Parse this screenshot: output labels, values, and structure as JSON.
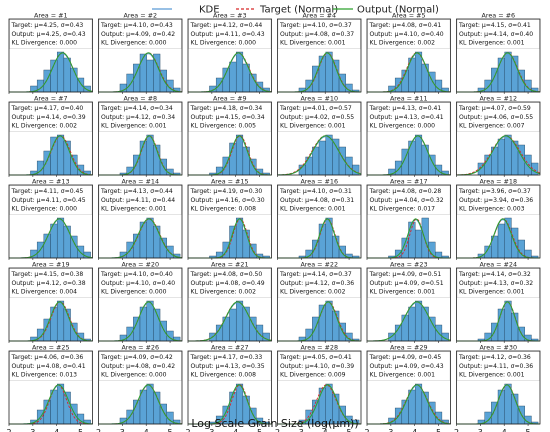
{
  "chart_data": {
    "type": "histogram-grid",
    "xlabel": "Log Scale Grain Size (log(μm))",
    "xlim": [
      2,
      5.5
    ],
    "xticks": [
      2,
      3,
      4,
      5
    ],
    "grid": {
      "rows": 5,
      "cols": 6
    },
    "legend": {
      "placement": "top-center",
      "entries": [
        {
          "label": "KDE",
          "color": "#5b9bd5",
          "style": "solid"
        },
        {
          "label": "Target (Normal)",
          "color": "#d62728",
          "style": "dashed"
        },
        {
          "label": "Output (Normal)",
          "color": "#2ca02c",
          "style": "solid"
        }
      ]
    },
    "colors": {
      "bar": "#5aa3d6",
      "bar_edge": "#1f3f5a",
      "kde": "#5b9bd5",
      "target": "#d62728",
      "output": "#2ca02c"
    },
    "panels": [
      {
        "title": "Area = #1",
        "target": "Target: μ=4.25, σ=0.43",
        "output": "Output: μ=4.25, σ=0.43",
        "kl": "KL Divergence: 0.000",
        "tm": 4.25,
        "ts": 0.43,
        "om": 4.25,
        "os": 0.43,
        "bars": [
          0.15,
          0.3,
          0.55,
          0.8,
          1.0,
          0.85,
          0.6,
          0.35,
          0.15
        ]
      },
      {
        "title": "Area = #2",
        "target": "Target: μ=4.10, σ=0.43",
        "output": "Output: μ=4.09, σ=0.42",
        "kl": "KL Divergence: 0.000",
        "tm": 4.1,
        "ts": 0.43,
        "om": 4.09,
        "os": 0.42,
        "bars": [
          0.2,
          0.45,
          0.7,
          0.95,
          0.8,
          0.95,
          0.55,
          0.3,
          0.1
        ]
      },
      {
        "title": "Area = #3",
        "target": "Target: μ=4.12, σ=0.44",
        "output": "Output: μ=4.11, σ=0.43",
        "kl": "KL Divergence: 0.000",
        "tm": 4.12,
        "ts": 0.44,
        "om": 4.11,
        "os": 0.43,
        "bars": [
          0.15,
          0.35,
          0.6,
          0.75,
          1.0,
          0.7,
          0.45,
          0.25,
          0.1
        ]
      },
      {
        "title": "Area = #4",
        "target": "Target: μ=4.10, σ=0.37",
        "output": "Output: μ=4.08, σ=0.37",
        "kl": "KL Divergence: 0.001",
        "tm": 4.1,
        "ts": 0.37,
        "om": 4.08,
        "os": 0.37,
        "bars": [
          0.1,
          0.3,
          0.65,
          0.9,
          1.0,
          0.8,
          0.45,
          0.2,
          0.05
        ]
      },
      {
        "title": "Area = #5",
        "target": "Target: μ=4.08, σ=0.41",
        "output": "Output: μ=4.10, σ=0.40",
        "kl": "KL Divergence: 0.002",
        "tm": 4.08,
        "ts": 0.41,
        "om": 4.1,
        "os": 0.4,
        "bars": [
          0.15,
          0.35,
          0.55,
          0.85,
          1.0,
          0.7,
          0.5,
          0.3,
          0.1
        ]
      },
      {
        "title": "Area = #6",
        "target": "Target: μ=4.15, σ=0.41",
        "output": "Output: μ=4.14, σ=0.40",
        "kl": "KL Divergence: 0.001",
        "tm": 4.15,
        "ts": 0.41,
        "om": 4.14,
        "os": 0.4,
        "bars": [
          0.1,
          0.3,
          0.6,
          0.85,
          1.0,
          0.9,
          0.55,
          0.3,
          0.1
        ]
      },
      {
        "title": "Area = #7",
        "target": "Target: μ=4.17, σ=0.40",
        "output": "Output: μ=4.14, σ=0.39",
        "kl": "KL Divergence: 0.002",
        "tm": 4.17,
        "ts": 0.4,
        "om": 4.14,
        "os": 0.39,
        "bars": [
          0.1,
          0.35,
          0.6,
          0.95,
          1.0,
          0.85,
          0.5,
          0.25,
          0.1
        ]
      },
      {
        "title": "Area = #8",
        "target": "Target: μ=4.14, σ=0.34",
        "output": "Output: μ=4.12, σ=0.34",
        "kl": "KL Divergence: 0.001",
        "tm": 4.14,
        "ts": 0.34,
        "om": 4.12,
        "os": 0.34,
        "bars": [
          0.05,
          0.2,
          0.5,
          0.85,
          1.0,
          0.75,
          0.4,
          0.15,
          0.05
        ]
      },
      {
        "title": "Area = #9",
        "target": "Target: μ=4.18, σ=0.34",
        "output": "Output: μ=4.15, σ=0.34",
        "kl": "KL Divergence: 0.005",
        "tm": 4.18,
        "ts": 0.34,
        "om": 4.15,
        "os": 0.34,
        "bars": [
          0.05,
          0.2,
          0.45,
          0.8,
          1.0,
          0.7,
          0.4,
          0.15,
          0.05
        ]
      },
      {
        "title": "Area = #10",
        "target": "Target: μ=4.01, σ=0.57",
        "output": "Output: μ=4.02, σ=0.55",
        "kl": "KL Divergence: 0.001",
        "tm": 4.01,
        "ts": 0.57,
        "om": 4.02,
        "os": 0.55,
        "bars": [
          0.25,
          0.45,
          0.7,
          0.85,
          1.0,
          0.9,
          0.7,
          0.45,
          0.25
        ]
      },
      {
        "title": "Area = #11",
        "target": "Target: μ=4.13, σ=0.41",
        "output": "Output: μ=4.13, σ=0.41",
        "kl": "KL Divergence: 0.000",
        "tm": 4.13,
        "ts": 0.41,
        "om": 4.13,
        "os": 0.41,
        "bars": [
          0.15,
          0.35,
          0.65,
          0.85,
          1.0,
          0.75,
          0.5,
          0.25,
          0.1
        ]
      },
      {
        "title": "Area = #12",
        "target": "Target: μ=4.07, σ=0.59",
        "output": "Output: μ=4.06, σ=0.55",
        "kl": "KL Divergence: 0.007",
        "tm": 4.07,
        "ts": 0.59,
        "om": 4.06,
        "os": 0.55,
        "bars": [
          0.3,
          0.5,
          0.7,
          0.9,
          1.0,
          0.85,
          0.75,
          0.5,
          0.3
        ]
      },
      {
        "title": "Area = #13",
        "target": "Target: μ=4.11, σ=0.45",
        "output": "Output: μ=4.11, σ=0.45",
        "kl": "KL Divergence: 0.000",
        "tm": 4.11,
        "ts": 0.45,
        "om": 4.11,
        "os": 0.45,
        "bars": [
          0.2,
          0.4,
          0.6,
          0.85,
          1.0,
          0.8,
          0.55,
          0.3,
          0.15
        ]
      },
      {
        "title": "Area = #14",
        "target": "Target: μ=4.13, σ=0.44",
        "output": "Output: μ=4.11, σ=0.44",
        "kl": "KL Divergence: 0.001",
        "tm": 4.13,
        "ts": 0.44,
        "om": 4.11,
        "os": 0.44,
        "bars": [
          0.15,
          0.4,
          0.6,
          0.9,
          1.0,
          0.8,
          0.5,
          0.3,
          0.1
        ]
      },
      {
        "title": "Area = #15",
        "target": "Target: μ=4.19, σ=0.30",
        "output": "Output: μ=4.16, σ=0.30",
        "kl": "KL Divergence: 0.008",
        "tm": 4.19,
        "ts": 0.3,
        "om": 4.16,
        "os": 0.3,
        "bars": [
          0.05,
          0.15,
          0.4,
          0.8,
          1.0,
          0.7,
          0.35,
          0.1,
          0.05
        ]
      },
      {
        "title": "Area = #16",
        "target": "Target: μ=4.10, σ=0.31",
        "output": "Output: μ=4.08, σ=0.31",
        "kl": "KL Divergence: 0.001",
        "tm": 4.1,
        "ts": 0.31,
        "om": 4.08,
        "os": 0.31,
        "bars": [
          0.05,
          0.2,
          0.45,
          0.85,
          1.0,
          0.55,
          0.3,
          0.1,
          0.05
        ]
      },
      {
        "title": "Area = #17",
        "target": "Target: μ=4.08, σ=0.28",
        "output": "Output: μ=4.04, σ=0.32",
        "kl": "KL Divergence: 0.017",
        "tm": 4.08,
        "ts": 0.28,
        "om": 4.04,
        "os": 0.32,
        "bars": [
          0.05,
          0.2,
          0.5,
          0.9,
          0.7,
          1.0,
          0.4,
          0.15,
          0.05
        ]
      },
      {
        "title": "Area = #18",
        "target": "Target: μ=3.96, σ=0.37",
        "output": "Output: μ=3.94, σ=0.36",
        "kl": "KL Divergence: 0.003",
        "tm": 3.96,
        "ts": 0.37,
        "om": 3.94,
        "os": 0.36,
        "bars": [
          0.1,
          0.3,
          0.55,
          0.85,
          1.0,
          0.75,
          0.45,
          0.2,
          0.05
        ]
      },
      {
        "title": "Area = #19",
        "target": "Target: μ=4.15, σ=0.38",
        "output": "Output: μ=4.12, σ=0.38",
        "kl": "KL Divergence: 0.004",
        "tm": 4.15,
        "ts": 0.38,
        "om": 4.12,
        "os": 0.38,
        "bars": [
          0.1,
          0.3,
          0.55,
          0.85,
          1.0,
          0.8,
          0.45,
          0.2,
          0.05
        ]
      },
      {
        "title": "Area = #20",
        "target": "Target: μ=4.10, σ=0.40",
        "output": "Output: μ=4.10, σ=0.40",
        "kl": "KL Divergence: 0.000",
        "tm": 4.1,
        "ts": 0.4,
        "om": 4.1,
        "os": 0.4,
        "bars": [
          0.15,
          0.35,
          0.6,
          0.85,
          1.0,
          0.8,
          0.5,
          0.25,
          0.1
        ]
      },
      {
        "title": "Area = #21",
        "target": "Target: μ=4.08, σ=0.50",
        "output": "Output: μ=4.08, σ=0.49",
        "kl": "KL Divergence: 0.002",
        "tm": 4.08,
        "ts": 0.5,
        "om": 4.08,
        "os": 0.49,
        "bars": [
          0.2,
          0.4,
          0.6,
          0.8,
          1.0,
          0.85,
          0.6,
          0.4,
          0.2
        ]
      },
      {
        "title": "Area = #22",
        "target": "Target: μ=4.14, σ=0.37",
        "output": "Output: μ=4.12, σ=0.36",
        "kl": "KL Divergence: 0.002",
        "tm": 4.14,
        "ts": 0.37,
        "om": 4.12,
        "os": 0.36,
        "bars": [
          0.1,
          0.3,
          0.6,
          0.9,
          1.0,
          0.75,
          0.45,
          0.2,
          0.05
        ]
      },
      {
        "title": "Area = #23",
        "target": "Target: μ=4.09, σ=0.51",
        "output": "Output: μ=4.09, σ=0.51",
        "kl": "KL Divergence: 0.001",
        "tm": 4.09,
        "ts": 0.51,
        "om": 4.09,
        "os": 0.51,
        "bars": [
          0.2,
          0.4,
          0.65,
          0.85,
          1.0,
          0.85,
          0.6,
          0.4,
          0.2
        ]
      },
      {
        "title": "Area = #24",
        "target": "Target: μ=4.14, σ=0.32",
        "output": "Output: μ=4.13, σ=0.32",
        "kl": "KL Divergence: 0.001",
        "tm": 4.14,
        "ts": 0.32,
        "om": 4.13,
        "os": 0.32,
        "bars": [
          0.05,
          0.2,
          0.45,
          0.8,
          1.0,
          0.7,
          0.35,
          0.15,
          0.05
        ]
      },
      {
        "title": "Area = #25",
        "target": "Target: μ=4.06, σ=0.36",
        "output": "Output: μ=4.08, σ=0.41",
        "kl": "KL Divergence: 0.013",
        "tm": 4.06,
        "ts": 0.36,
        "om": 4.08,
        "os": 0.41,
        "bars": [
          0.1,
          0.35,
          0.6,
          0.85,
          1.0,
          0.8,
          0.5,
          0.25,
          0.1
        ]
      },
      {
        "title": "Area = #26",
        "target": "Target: μ=4.09, σ=0.42",
        "output": "Output: μ=4.08, σ=0.42",
        "kl": "KL Divergence: 0.000",
        "tm": 4.09,
        "ts": 0.42,
        "om": 4.08,
        "os": 0.42,
        "bars": [
          0.15,
          0.35,
          0.6,
          0.85,
          1.0,
          0.8,
          0.5,
          0.3,
          0.1
        ]
      },
      {
        "title": "Area = #27",
        "target": "Target: μ=4.17, σ=0.33",
        "output": "Output: μ=4.13, σ=0.35",
        "kl": "KL Divergence: 0.008",
        "tm": 4.17,
        "ts": 0.33,
        "om": 4.13,
        "os": 0.35,
        "bars": [
          0.05,
          0.2,
          0.45,
          0.8,
          1.0,
          0.7,
          0.4,
          0.15,
          0.05
        ]
      },
      {
        "title": "Area = #28",
        "target": "Target: μ=4.05, σ=0.41",
        "output": "Output: μ=4.10, σ=0.39",
        "kl": "KL Divergence: 0.009",
        "tm": 4.05,
        "ts": 0.41,
        "om": 4.1,
        "os": 0.39,
        "bars": [
          0.1,
          0.35,
          0.6,
          0.9,
          1.0,
          0.75,
          0.45,
          0.2,
          0.1
        ]
      },
      {
        "title": "Area = #29",
        "target": "Target: μ=4.09, σ=0.45",
        "output": "Output: μ=4.09, σ=0.43",
        "kl": "KL Divergence: 0.001",
        "tm": 4.09,
        "ts": 0.45,
        "om": 4.09,
        "os": 0.43,
        "bars": [
          0.15,
          0.4,
          0.6,
          0.85,
          1.0,
          0.8,
          0.55,
          0.3,
          0.1
        ]
      },
      {
        "title": "Area = #30",
        "target": "Target: μ=4.12, σ=0.36",
        "output": "Output: μ=4.11, σ=0.36",
        "kl": "KL Divergence: 0.001",
        "tm": 4.12,
        "ts": 0.36,
        "om": 4.11,
        "os": 0.36,
        "bars": [
          0.1,
          0.3,
          0.55,
          0.85,
          1.0,
          0.75,
          0.45,
          0.2,
          0.05
        ]
      }
    ]
  }
}
